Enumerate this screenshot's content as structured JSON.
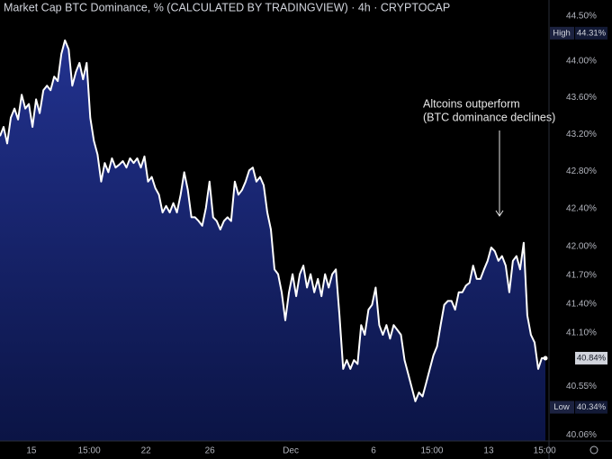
{
  "chart_data": {
    "type": "area",
    "title": "Market Cap BTC Dominance, % (CALCULATED BY TRADINGVIEW) · 4h · CRYPTOCAP",
    "annotation": [
      "Altcoins outperform",
      "(BTC dominance declines)"
    ],
    "log_scale": true,
    "grid": false,
    "xlim": [
      0,
      151
    ],
    "xticks": [
      {
        "value": 8.7,
        "label": "15"
      },
      {
        "value": 24.7,
        "label": "15:00"
      },
      {
        "value": 40.4,
        "label": "22"
      },
      {
        "value": 58.1,
        "label": "26"
      },
      {
        "value": 80.5,
        "label": "Dec"
      },
      {
        "value": 103.4,
        "label": "6"
      },
      {
        "value": 119.6,
        "label": "15:00"
      },
      {
        "value": 135.3,
        "label": "13"
      },
      {
        "value": 150.8,
        "label": "15:00"
      }
    ],
    "ylim": [
      40.0,
      44.68
    ],
    "yticks": [
      {
        "value": 40.06,
        "label": "40.06%"
      },
      {
        "value": 40.55,
        "label": "40.55%"
      },
      {
        "value": 41.1,
        "label": "41.10%"
      },
      {
        "value": 41.4,
        "label": "41.40%"
      },
      {
        "value": 41.7,
        "label": "41.70%"
      },
      {
        "value": 42.0,
        "label": "42.00%"
      },
      {
        "value": 42.4,
        "label": "42.40%"
      },
      {
        "value": 42.8,
        "label": "42.80%"
      },
      {
        "value": 43.2,
        "label": "43.20%"
      },
      {
        "value": 43.6,
        "label": "43.60%"
      },
      {
        "value": 44.0,
        "label": "44.00%"
      },
      {
        "value": 44.5,
        "label": "44.50%"
      }
    ],
    "price_labels": [
      {
        "name": "High",
        "value": 44.31,
        "label": "44.31%"
      },
      {
        "name": "Low",
        "value": 40.34,
        "label": "40.34%"
      }
    ],
    "last_price": {
      "value": 40.84,
      "label": "40.84%"
    },
    "series": [
      {
        "color": "#ffffff",
        "fill_top": "#22328f",
        "fill_bottom": "#0b1445",
        "values": [
          43.18,
          43.28,
          43.1,
          43.38,
          43.48,
          43.36,
          43.63,
          43.48,
          43.53,
          43.28,
          43.58,
          43.43,
          43.68,
          43.73,
          43.68,
          43.83,
          43.78,
          44.08,
          44.23,
          44.13,
          43.73,
          43.88,
          43.98,
          43.8,
          43.98,
          43.38,
          43.13,
          42.98,
          42.69,
          42.89,
          42.79,
          42.94,
          42.84,
          42.87,
          42.91,
          42.84,
          42.94,
          42.89,
          42.94,
          42.84,
          42.96,
          42.69,
          42.74,
          42.62,
          42.55,
          42.36,
          42.43,
          42.36,
          42.46,
          42.36,
          42.55,
          42.79,
          42.6,
          42.31,
          42.31,
          42.27,
          42.22,
          42.41,
          42.69,
          42.31,
          42.27,
          42.18,
          42.27,
          42.31,
          42.27,
          42.69,
          42.55,
          42.6,
          42.69,
          42.81,
          42.84,
          42.69,
          42.74,
          42.65,
          42.36,
          42.18,
          41.76,
          41.71,
          41.52,
          41.23,
          41.52,
          41.71,
          41.48,
          41.71,
          41.8,
          41.57,
          41.71,
          41.52,
          41.66,
          41.48,
          41.71,
          41.57,
          41.71,
          41.76,
          41.28,
          40.73,
          40.82,
          40.73,
          40.82,
          40.78,
          41.18,
          41.08,
          41.34,
          41.39,
          41.57,
          41.18,
          41.08,
          41.18,
          41.04,
          41.18,
          41.13,
          41.08,
          40.82,
          40.68,
          40.54,
          40.4,
          40.49,
          40.45,
          40.59,
          40.73,
          40.87,
          40.96,
          41.18,
          41.39,
          41.43,
          41.43,
          41.34,
          41.52,
          41.52,
          41.59,
          41.62,
          41.8,
          41.66,
          41.66,
          41.76,
          41.85,
          41.99,
          41.95,
          41.85,
          41.9,
          41.8,
          41.52,
          41.85,
          41.9,
          41.76,
          42.04,
          41.28,
          41.08,
          41.0,
          40.73,
          40.84,
          40.84
        ]
      }
    ]
  }
}
